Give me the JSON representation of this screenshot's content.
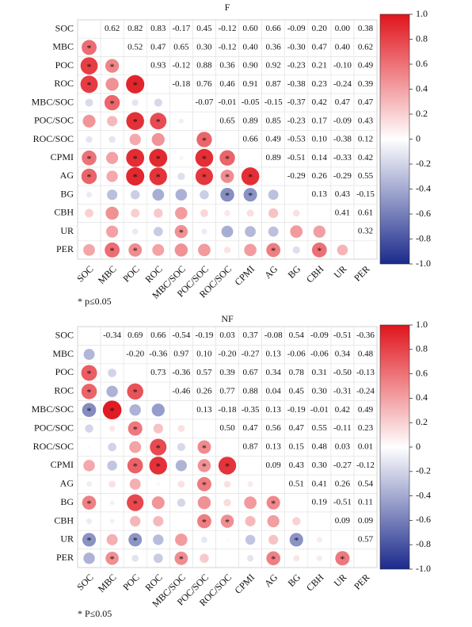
{
  "chart_data": [
    {
      "type": "correlogram",
      "title": "F",
      "labels": [
        "SOC",
        "MBC",
        "POC",
        "ROC",
        "MBC/SOC",
        "POC/SOC",
        "ROC/SOC",
        "CPMI",
        "AG",
        "BG",
        "CBH",
        "UR",
        "PER"
      ],
      "values": [
        [
          0.62,
          0.82,
          0.83,
          -0.17,
          0.45,
          -0.12,
          0.6,
          0.66,
          -0.09,
          0.2,
          0,
          0.38
        ],
        [
          0.52,
          0.47,
          0.65,
          0.3,
          -0.12,
          0.4,
          0.36,
          -0.3,
          0.47,
          0.4,
          0.62
        ],
        [
          0.93,
          -0.12,
          0.88,
          0.36,
          0.9,
          0.92,
          -0.23,
          0.21,
          -0.1,
          0.49
        ],
        [
          -0.18,
          0.76,
          0.46,
          0.91,
          0.87,
          -0.38,
          0.23,
          -0.24,
          0.39
        ],
        [
          -0.07,
          -0.01,
          -0.05,
          -0.15,
          -0.37,
          0.42,
          0.47,
          0.47
        ],
        [
          0.65,
          0.89,
          0.85,
          -0.23,
          0.17,
          -0.09,
          0.43
        ],
        [
          0.66,
          0.49,
          -0.53,
          0.1,
          -0.38,
          0.12
        ],
        [
          0.89,
          -0.51,
          0.14,
          -0.33,
          0.42
        ],
        [
          -0.29,
          0.26,
          -0.29,
          0.55
        ],
        [
          0.13,
          0.43,
          -0.15
        ],
        [
          0.41,
          0.61
        ],
        [
          0.32
        ]
      ],
      "value_labels": [
        [
          "0.62",
          "0.82",
          "0.83",
          "-0.17",
          "0.45",
          "-0.12",
          "0.60",
          "0.66",
          "-0.09",
          "0.20",
          "0.00",
          "0.38"
        ],
        [
          "0.52",
          "0.47",
          "0.65",
          "0.30",
          "-0.12",
          "0.40",
          "0.36",
          "-0.30",
          "0.47",
          "0.40",
          "0.62"
        ],
        [
          "0.93",
          "-0.12",
          "0.88",
          "0.36",
          "0.90",
          "0.92",
          "-0.23",
          "0.21",
          "-0.10",
          "0.49"
        ],
        [
          "-0.18",
          "0.76",
          "0.46",
          "0.91",
          "0.87",
          "-0.38",
          "0.23",
          "-0.24",
          "0.39"
        ],
        [
          "-0.07",
          "-0.01",
          "-0.05",
          "-0.15",
          "-0.37",
          "0.42",
          "0.47",
          "0.47"
        ],
        [
          "0.65",
          "0.89",
          "0.85",
          "-0.23",
          "0.17",
          "-0.09",
          "0.43"
        ],
        [
          "0.66",
          "0.49",
          "-0.53",
          "0.10",
          "-0.38",
          "0.12"
        ],
        [
          "0.89",
          "-0.51",
          "0.14",
          "-0.33",
          "0.42"
        ],
        [
          "-0.29",
          "0.26",
          "-0.29",
          "0.55"
        ],
        [
          "0.13",
          "0.43",
          "-0.15"
        ],
        [
          "0.41",
          "0.61"
        ],
        [
          "0.32"
        ]
      ],
      "significant": [
        [
          1,
          0
        ],
        [
          2,
          0
        ],
        [
          2,
          1
        ],
        [
          3,
          0
        ],
        [
          3,
          2
        ],
        [
          4,
          1
        ],
        [
          5,
          2
        ],
        [
          5,
          3
        ],
        [
          6,
          5
        ],
        [
          7,
          0
        ],
        [
          7,
          2
        ],
        [
          7,
          3
        ],
        [
          7,
          5
        ],
        [
          7,
          6
        ],
        [
          8,
          0
        ],
        [
          8,
          2
        ],
        [
          8,
          3
        ],
        [
          8,
          5
        ],
        [
          8,
          6
        ],
        [
          8,
          7
        ],
        [
          9,
          6
        ],
        [
          9,
          7
        ],
        [
          11,
          4
        ],
        [
          12,
          1
        ],
        [
          12,
          2
        ],
        [
          12,
          8
        ],
        [
          12,
          10
        ]
      ],
      "sig_marker": "*",
      "note": "* p≤0.05",
      "clim": [
        -1,
        1
      ],
      "colormap": [
        "#1b2a8c",
        "#ffffff",
        "#e0141c"
      ],
      "cticks": [
        {
          "value": 1,
          "label": "1.0"
        },
        0.8,
        0.6,
        0.4,
        0.2,
        0,
        -0.2,
        -0.4,
        -0.6,
        -0.8,
        {
          "value": -1,
          "label": "-1.0"
        }
      ]
    },
    {
      "type": "correlogram",
      "title": "NF",
      "labels": [
        "SOC",
        "MBC",
        "POC",
        "ROC",
        "MBC/SOC",
        "POC/SOC",
        "ROC/SOC",
        "CPMI",
        "AG",
        "BG",
        "CBH",
        "UR",
        "PER"
      ],
      "values": [
        [
          -0.34,
          0.69,
          0.66,
          -0.54,
          -0.19,
          0.03,
          0.37,
          -0.08,
          0.54,
          -0.09,
          -0.51,
          -0.36
        ],
        [
          -0.2,
          -0.36,
          0.97,
          0.1,
          -0.2,
          -0.27,
          0.13,
          -0.06,
          -0.06,
          0.34,
          0.48
        ],
        [
          0.73,
          -0.36,
          0.57,
          0.39,
          0.67,
          0.34,
          0.78,
          0.31,
          -0.5,
          -0.13
        ],
        [
          -0.46,
          0.26,
          0.77,
          0.88,
          0.04,
          0.45,
          0.3,
          -0.31,
          -0.24
        ],
        [
          0.13,
          -0.18,
          -0.35,
          0.13,
          -0.19,
          -0.01,
          0.42,
          0.49
        ],
        [
          0.5,
          0.47,
          0.56,
          0.47,
          0.55,
          -0.11,
          0.23
        ],
        [
          0.87,
          0.13,
          0.15,
          0.48,
          0.03,
          0.01
        ],
        [
          0.09,
          0.43,
          0.3,
          -0.27,
          -0.12
        ],
        [
          0.51,
          0.41,
          0.26,
          0.54
        ],
        [
          0.19,
          -0.51,
          0.11
        ],
        [
          0.09,
          0.09
        ],
        [
          0.57
        ]
      ],
      "value_labels": [
        [
          "-0.34",
          "0.69",
          "0.66",
          "-0.54",
          "-0.19",
          "0.03",
          "0.37",
          "-0.08",
          "0.54",
          "-0.09",
          "-0.51",
          "-0.36"
        ],
        [
          "-0.20",
          "-0.36",
          "0.97",
          "0.10",
          "-0.20",
          "-0.27",
          "0.13",
          "-0.06",
          "-0.06",
          "0.34",
          "0.48"
        ],
        [
          "0.73",
          "-0.36",
          "0.57",
          "0.39",
          "0.67",
          "0.34",
          "0.78",
          "0.31",
          "-0.50",
          "-0.13"
        ],
        [
          "-0.46",
          "0.26",
          "0.77",
          "0.88",
          "0.04",
          "0.45",
          "0.30",
          "-0.31",
          "-0.24"
        ],
        [
          "0.13",
          "-0.18",
          "-0.35",
          "0.13",
          "-0.19",
          "-0.01",
          "0.42",
          "0.49"
        ],
        [
          "0.50",
          "0.47",
          "0.56",
          "0.47",
          "0.55",
          "-0.11",
          "0.23"
        ],
        [
          "0.87",
          "0.13",
          "0.15",
          "0.48",
          "0.03",
          "0.01"
        ],
        [
          "0.09",
          "0.43",
          "0.30",
          "-0.27",
          "-0.12"
        ],
        [
          "0.51",
          "0.41",
          "0.26",
          "0.54"
        ],
        [
          "0.19",
          "-0.51",
          "0.11"
        ],
        [
          "0.09",
          "0.09"
        ],
        [
          "0.57"
        ]
      ],
      "significant": [
        [
          2,
          0
        ],
        [
          3,
          0
        ],
        [
          3,
          2
        ],
        [
          4,
          0
        ],
        [
          4,
          1
        ],
        [
          5,
          2
        ],
        [
          6,
          3
        ],
        [
          6,
          5
        ],
        [
          7,
          2
        ],
        [
          7,
          3
        ],
        [
          7,
          5
        ],
        [
          7,
          6
        ],
        [
          8,
          5
        ],
        [
          9,
          0
        ],
        [
          9,
          2
        ],
        [
          9,
          8
        ],
        [
          10,
          5
        ],
        [
          10,
          6
        ],
        [
          11,
          0
        ],
        [
          11,
          2
        ],
        [
          11,
          9
        ],
        [
          12,
          1
        ],
        [
          12,
          4
        ],
        [
          12,
          8
        ],
        [
          12,
          11
        ]
      ],
      "sig_marker": "*",
      "note": "* P≤0.05",
      "clim": [
        -1,
        1
      ],
      "colormap": [
        "#1b2a8c",
        "#ffffff",
        "#e0141c"
      ],
      "cticks": [
        {
          "value": 1,
          "label": "1.0"
        },
        0.8,
        0.6,
        0.4,
        0.2,
        0,
        -0.2,
        -0.4,
        -0.6,
        -0.8,
        {
          "value": -1,
          "label": "-1.0"
        }
      ]
    }
  ]
}
